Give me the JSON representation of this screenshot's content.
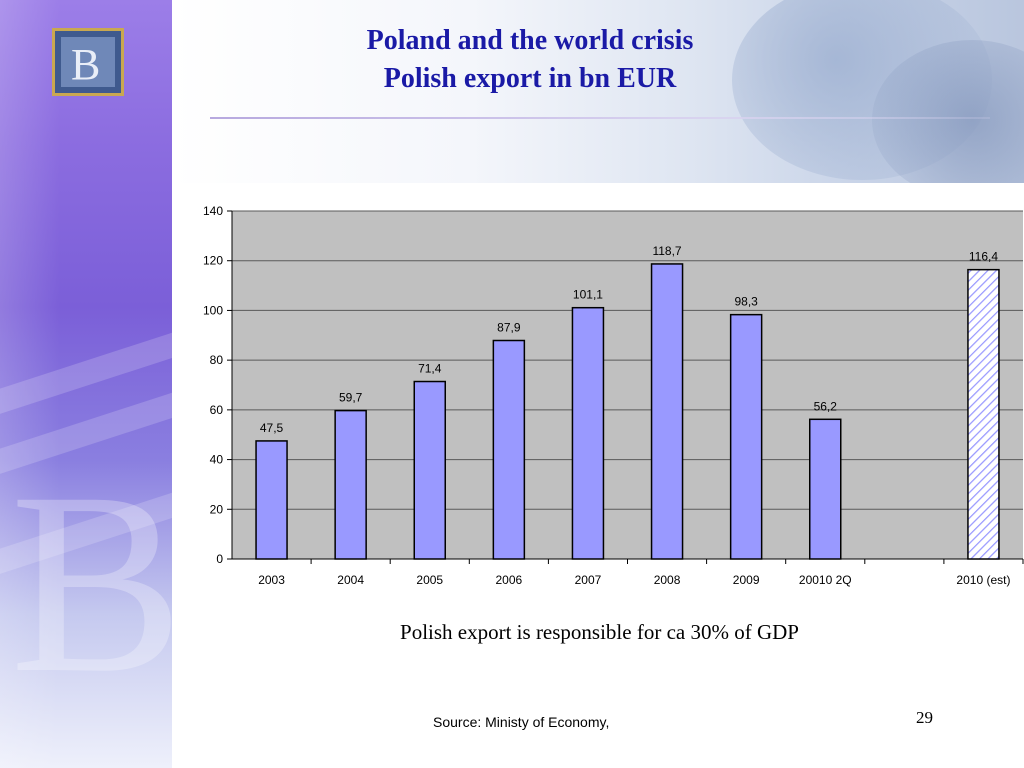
{
  "slide": {
    "title_line1": "Poland and the world crisis",
    "title_line2": "Polish export in bn EUR",
    "caption": "Polish export is responsible for ca 30% of GDP",
    "source": "Source: Ministy of Economy,",
    "page_number": "29"
  },
  "colors": {
    "bar_fill": "#9999ff",
    "plot_bg": "#c0c0c0",
    "title": "#1a1aa6",
    "hatched_bar": "#d8dcff"
  },
  "chart_data": {
    "type": "bar",
    "categories": [
      "2003",
      "2004",
      "2005",
      "2006",
      "2007",
      "2008",
      "2009",
      "20010 2Q",
      "",
      "2010 (est)"
    ],
    "values": [
      47.5,
      59.7,
      71.4,
      87.9,
      101.1,
      118.7,
      98.3,
      56.2,
      null,
      116.4
    ],
    "data_labels": [
      "47,5",
      "59,7",
      "71,4",
      "87,9",
      "101,1",
      "118,7",
      "98,3",
      "56,2",
      "",
      "116,4"
    ],
    "hatched": [
      false,
      false,
      false,
      false,
      false,
      false,
      false,
      false,
      false,
      true
    ],
    "ylim": [
      0,
      140
    ],
    "yticks": [
      0,
      20,
      40,
      60,
      80,
      100,
      120,
      140
    ],
    "ytick_labels": [
      "0",
      "20",
      "40",
      "60",
      "80",
      "100",
      "120",
      "140"
    ],
    "grid": true,
    "legend": "none",
    "title": "",
    "xlabel": "",
    "ylabel": ""
  }
}
